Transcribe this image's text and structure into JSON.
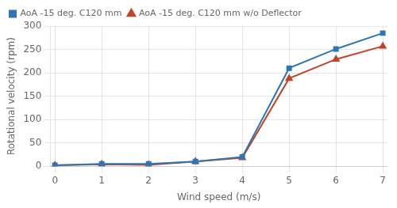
{
  "chart_data": {
    "type": "line",
    "x": [
      0,
      1,
      2,
      3,
      4,
      5,
      6,
      7
    ],
    "series": [
      {
        "name": "AoA -15 deg. C120 mm",
        "color": "#2E75B6",
        "marker": "square",
        "values": [
          2,
          5,
          5,
          10,
          20,
          210,
          251,
          285
        ]
      },
      {
        "name": "AoA -15 deg. C120 mm w/o Deflector",
        "color": "#C0432A",
        "marker": "triangle",
        "values": [
          2,
          4,
          3,
          10,
          18,
          188,
          229,
          257
        ]
      }
    ],
    "xlabel": "Wind speed (m/s)",
    "ylabel": "Rotational velocity (rpm)",
    "xlim": [
      -0.1,
      7.1
    ],
    "ylim": [
      0,
      300
    ],
    "xticks": [
      0,
      1,
      2,
      3,
      4,
      5,
      6,
      7
    ],
    "yticks": [
      0,
      50,
      100,
      150,
      200,
      250,
      300
    ],
    "grid": true,
    "legend": "upper left"
  }
}
